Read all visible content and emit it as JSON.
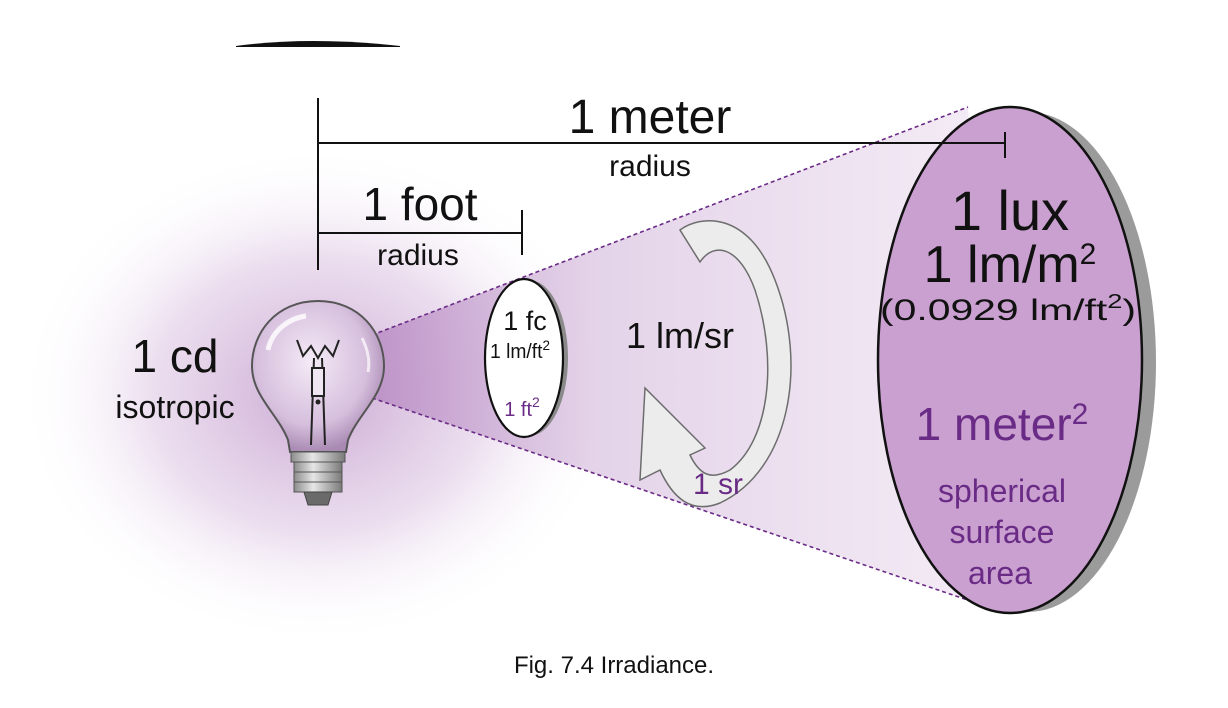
{
  "source": {
    "candela_label": "1 cd",
    "isotropic_label": "isotropic"
  },
  "dimensions": {
    "meter_label": "1 meter",
    "meter_radius_label": "radius",
    "foot_label": "1 foot",
    "foot_radius_label": "radius"
  },
  "small_disk": {
    "fc_label": "1 fc",
    "lm_ft2_base": "1 lm/ft",
    "lm_ft2_exp": "2",
    "area_base": "1 ft",
    "area_exp": "2"
  },
  "solid_angle": {
    "flux_label": "1 lm/sr",
    "sr_label": "1 sr"
  },
  "large_disk": {
    "lux_label": "1 lux",
    "lm_m2_base": "1 lm/m",
    "lm_m2_exp": "2",
    "conversion_open": "(0.0929 lm/ft",
    "conversion_exp": "2",
    "conversion_close": ")",
    "area_base": "1 meter",
    "area_exp": "2",
    "area_desc_1": "spherical",
    "area_desc_2": "surface",
    "area_desc_3": "area"
  },
  "caption": "Fig. 7.4  Irradiance."
}
